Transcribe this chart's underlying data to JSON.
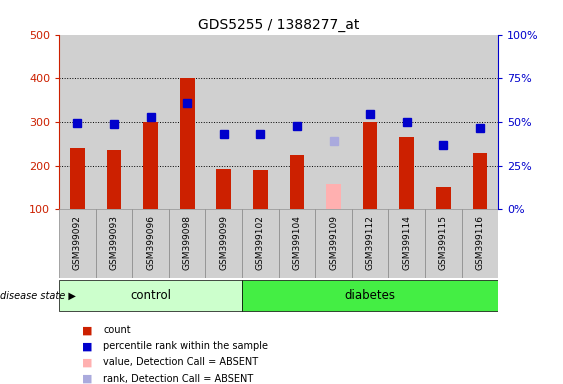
{
  "title": "GDS5255 / 1388277_at",
  "samples": [
    "GSM399092",
    "GSM399093",
    "GSM399096",
    "GSM399098",
    "GSM399099",
    "GSM399102",
    "GSM399104",
    "GSM399109",
    "GSM399112",
    "GSM399114",
    "GSM399115",
    "GSM399116"
  ],
  "groups": [
    "control",
    "control",
    "control",
    "control",
    "control",
    "diabetes",
    "diabetes",
    "diabetes",
    "diabetes",
    "diabetes",
    "diabetes",
    "diabetes"
  ],
  "bar_values": [
    240,
    235,
    300,
    400,
    192,
    190,
    225,
    null,
    300,
    265,
    150,
    228
  ],
  "bar_absent_values": [
    null,
    null,
    null,
    null,
    null,
    null,
    null,
    157,
    null,
    null,
    null,
    null
  ],
  "percentile_values": [
    297,
    295,
    312,
    343,
    272,
    272,
    290,
    null,
    318,
    300,
    248,
    285
  ],
  "percentile_absent_values": [
    null,
    null,
    null,
    null,
    null,
    null,
    null,
    256,
    null,
    null,
    null,
    null
  ],
  "ylim_left": [
    100,
    500
  ],
  "ylim_right": [
    0,
    100
  ],
  "yticks_left": [
    100,
    200,
    300,
    400,
    500
  ],
  "ytick_labels_left": [
    "100",
    "200",
    "300",
    "400",
    "500"
  ],
  "yticks_right_pct": [
    0,
    25,
    50,
    75,
    100
  ],
  "ytick_labels_right": [
    "0%",
    "25%",
    "50%",
    "75%",
    "100%"
  ],
  "grid_values": [
    200,
    300,
    400
  ],
  "bar_color": "#cc2000",
  "bar_absent_color": "#ffb0b0",
  "percentile_color": "#0000cc",
  "percentile_absent_color": "#aaaadd",
  "control_bg": "#ccffcc",
  "diabetes_bg": "#44ee44",
  "sample_bg_color": "#d0d0d0",
  "sample_border_color": "#888888",
  "legend_items": [
    {
      "label": "count",
      "color": "#cc2000"
    },
    {
      "label": "percentile rank within the sample",
      "color": "#0000cc"
    },
    {
      "label": "value, Detection Call = ABSENT",
      "color": "#ffb0b0"
    },
    {
      "label": "rank, Detection Call = ABSENT",
      "color": "#aaaadd"
    }
  ],
  "disease_state_label": "disease state",
  "ylabel_left_color": "#cc2000",
  "ylabel_right_color": "#0000cc",
  "bar_width": 0.4,
  "marker_size": 6
}
